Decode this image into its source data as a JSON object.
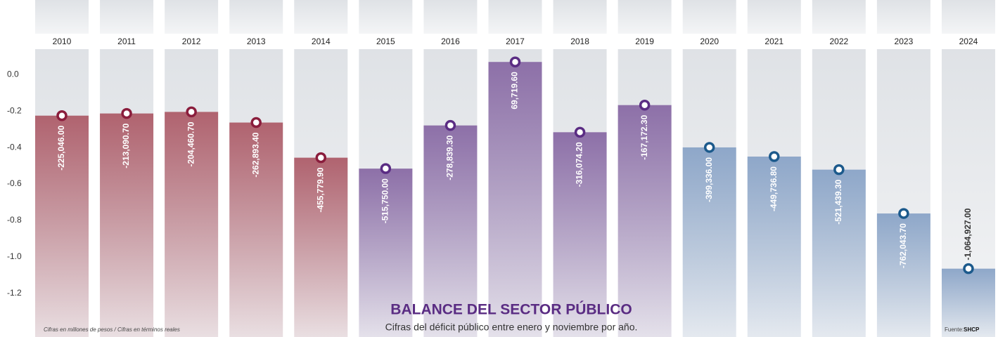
{
  "chart_data": {
    "type": "bar",
    "title": "BALANCE DEL SECTOR PÚBLICO",
    "subtitle": "Cifras del déficit público entre enero y noviembre por año.",
    "note": "Cifras en millones de pesos / Cifras en términos reales",
    "source": "Fuente:",
    "source_name": "SHCP",
    "categories": [
      "2010",
      "2011",
      "2012",
      "2013",
      "2014",
      "2015",
      "2016",
      "2017",
      "2018",
      "2019",
      "2020",
      "2021",
      "2022",
      "2023",
      "2024"
    ],
    "values": [
      -0.225046,
      -0.2130907,
      -0.2044607,
      -0.2628934,
      -0.4557799,
      -0.51575,
      -0.2788393,
      0.0697196,
      -0.3160742,
      -0.1671723,
      -0.399336,
      -0.4497368,
      -0.5214393,
      -0.7620437,
      -1.064927
    ],
    "value_labels": [
      "-225,046.00",
      "-213,090.70",
      "-204,460.70",
      "-262,893.40",
      "-455,779.90",
      "-515,750.00",
      "-278,839.30",
      "69,719.60",
      "-316,074.20",
      "-167,172.30",
      "-399,336.00",
      "-449,736.80",
      "-521,439.30",
      "-762,043.70",
      "-1,064,927.00"
    ],
    "colors": [
      "#b0636f",
      "#b0636f",
      "#b0636f",
      "#b0636f",
      "#b0636f",
      "#8d70a8",
      "#8d70a8",
      "#8d70a8",
      "#8d70a8",
      "#8d70a8",
      "#8ea7c9",
      "#8ea7c9",
      "#8ea7c9",
      "#8ea7c9",
      "#8ea7c9"
    ],
    "marker_colors": [
      "#8a1d3c",
      "#8a1d3c",
      "#8a1d3c",
      "#8a1d3c",
      "#8a1d3c",
      "#5a2c83",
      "#5a2c83",
      "#5a2c83",
      "#5a2c83",
      "#5a2c83",
      "#1c5a8c",
      "#1c5a8c",
      "#1c5a8c",
      "#1c5a8c",
      "#1c5a8c"
    ],
    "ylim": [
      -1.44,
      0.14
    ],
    "yticks": [
      {
        "value": 0,
        "label": "0.0"
      },
      -0.2,
      -0.4,
      -0.6,
      -0.8,
      {
        "value": -1,
        "label": "-1.0"
      },
      -1.2
    ]
  }
}
